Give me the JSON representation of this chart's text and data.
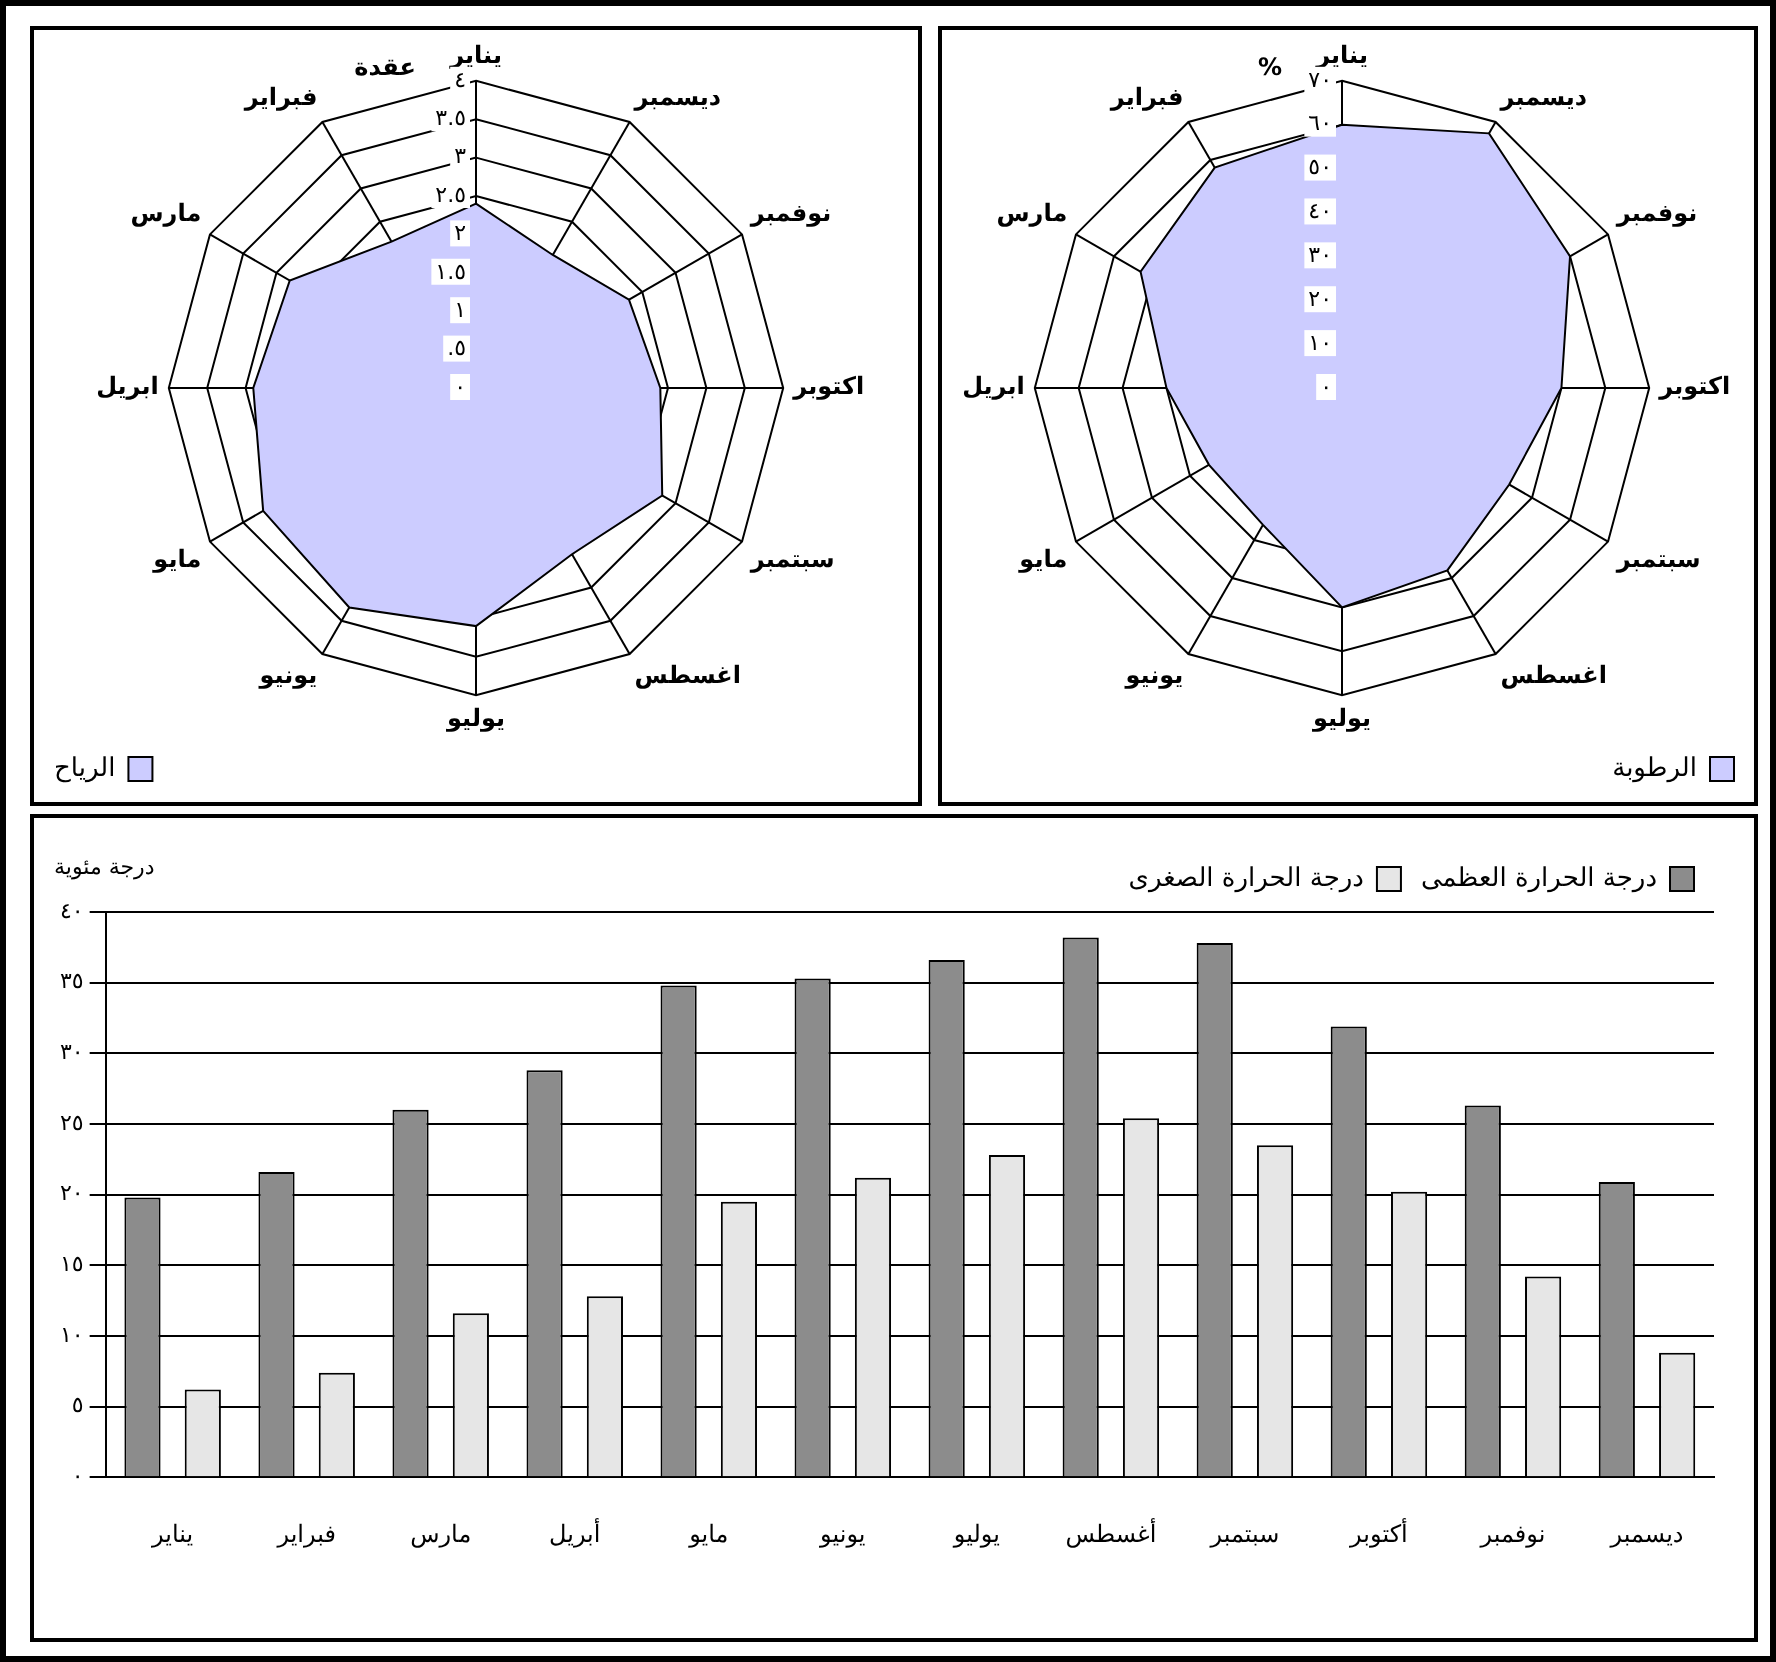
{
  "chart_data": [
    {
      "type": "radar",
      "ylabel": "عقدة",
      "categories": [
        "يناير",
        "ديسمبر",
        "نوفمبر",
        "اكتوبر",
        "سبتمبر",
        "اغسطس",
        "يوليو",
        "يونيو",
        "مايو",
        "ابريل",
        "مارس",
        "فبراير"
      ],
      "series": [
        {
          "name": "الرياح",
          "color": "#ccccff",
          "values": [
            2.4,
            2.0,
            2.3,
            2.4,
            2.8,
            2.5,
            3.1,
            3.3,
            3.2,
            2.9,
            2.8,
            2.2
          ]
        }
      ],
      "ylim": [
        0,
        4
      ],
      "yticks": [
        {
          "value": 0,
          "label": "٠"
        },
        {
          "value": 0.5,
          "label": ".٥"
        },
        {
          "value": 1,
          "label": "١"
        },
        {
          "value": 1.5,
          "label": "١.٥"
        },
        {
          "value": 2,
          "label": "٢"
        },
        {
          "value": 2.5,
          "label": "٢.٥"
        },
        {
          "value": 3,
          "label": "٣"
        },
        {
          "value": 3.5,
          "label": "٣.٥"
        },
        {
          "value": 4,
          "label": "٤"
        }
      ],
      "grid": true,
      "legend": "bottom left"
    },
    {
      "type": "radar",
      "ylabel": "%",
      "categories": [
        "يناير",
        "ديسمبر",
        "نوفمبر",
        "اكتوبر",
        "سبتمبر",
        "اغسطس",
        "يوليو",
        "يونيو",
        "مايو",
        "ابريل",
        "مارس",
        "فبراير"
      ],
      "series": [
        {
          "name": "الرطوبة",
          "color": "#ccccff",
          "values": [
            60,
            67,
            60,
            50,
            44,
            48,
            50,
            36,
            35,
            40,
            53,
            58
          ]
        }
      ],
      "ylim": [
        0,
        70
      ],
      "yticks": [
        {
          "value": 0,
          "label": "٠"
        },
        {
          "value": 10,
          "label": "١٠"
        },
        {
          "value": 20,
          "label": "٢٠"
        },
        {
          "value": 30,
          "label": "٣٠"
        },
        {
          "value": 40,
          "label": "٤٠"
        },
        {
          "value": 50,
          "label": "٥٠"
        },
        {
          "value": 60,
          "label": "٦٠"
        },
        {
          "value": 70,
          "label": "٧٠"
        }
      ],
      "grid": true,
      "legend": "bottom right"
    },
    {
      "type": "bar",
      "ylabel": "درجة مئوية",
      "categories": [
        "يناير",
        "فبراير",
        "مارس",
        "أبريل",
        "مايو",
        "يونيو",
        "يوليو",
        "أغسطس",
        "سبتمبر",
        "أكتوبر",
        "نوفمبر",
        "ديسمبر"
      ],
      "series": [
        {
          "name": "درجة الحرارة العظمى",
          "color": "#8c8c8c",
          "values": [
            19.8,
            21.6,
            26.0,
            28.8,
            34.8,
            35.3,
            36.6,
            38.2,
            37.8,
            31.9,
            26.3,
            20.9
          ]
        },
        {
          "name": "درجة الحرارة الصغرى",
          "color": "#e6e6e6",
          "values": [
            6.2,
            7.4,
            11.6,
            12.8,
            19.5,
            21.2,
            22.8,
            25.4,
            23.5,
            20.2,
            14.2,
            8.8
          ]
        }
      ],
      "ylim": [
        0,
        40
      ],
      "yticks": [
        {
          "value": 0,
          "label": "٠"
        },
        {
          "value": 5,
          "label": "٥"
        },
        {
          "value": 10,
          "label": "١٠"
        },
        {
          "value": 15,
          "label": "١٥"
        },
        {
          "value": 20,
          "label": "٢٠"
        },
        {
          "value": 25,
          "label": "٢٥"
        },
        {
          "value": 30,
          "label": "٣٠"
        },
        {
          "value": 35,
          "label": "٣٥"
        },
        {
          "value": 40,
          "label": "٤٠"
        }
      ],
      "grid": "y",
      "legend": "top right"
    }
  ]
}
